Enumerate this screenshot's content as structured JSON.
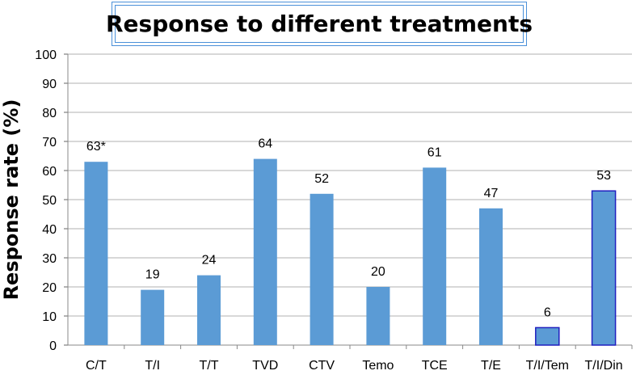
{
  "chart_data": {
    "type": "bar",
    "title": "Response to different treatments",
    "xlabel": "",
    "ylabel": "Response rate  (%)",
    "ylim": [
      0,
      100
    ],
    "yticks": [
      0,
      10,
      20,
      30,
      40,
      50,
      60,
      70,
      80,
      90,
      100
    ],
    "grid": "horizontal",
    "categories": [
      "C/T",
      "T/I",
      "T/T",
      "TVD",
      "CTV",
      "Temo",
      "TCE",
      "T/E",
      "T/I/Tem",
      "T/I/Din"
    ],
    "values": [
      63,
      19,
      24,
      64,
      52,
      20,
      61,
      47,
      6,
      53
    ],
    "data_labels": [
      "63*",
      "19",
      "24",
      "64",
      "52",
      "20",
      "61",
      "47",
      "6",
      "53"
    ],
    "colors": {
      "bar_fill": "#5b9bd5",
      "highlight_border": "#1f1fbf",
      "grid": "#b0b0b0",
      "title_border": "#4a90d9"
    },
    "highlighted_bars": [
      "T/I/Tem",
      "T/I/Din"
    ]
  }
}
